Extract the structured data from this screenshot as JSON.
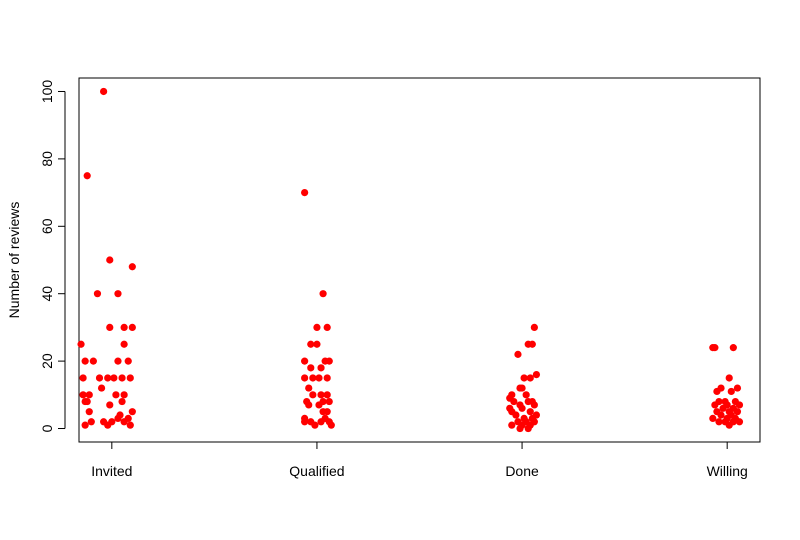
{
  "chart_data": {
    "type": "scatter",
    "title": "",
    "xlabel": "",
    "ylabel": "Number of reviews",
    "categories": [
      "Invited",
      "Qualified",
      "Done",
      "Willing"
    ],
    "ylim": [
      -4,
      104
    ],
    "yticks": [
      0,
      20,
      40,
      60,
      80,
      100
    ],
    "point_color": "#ff0000",
    "grid": false,
    "legend": "none",
    "series": [
      {
        "values": [
          [
            -0.04,
            100
          ],
          [
            -0.12,
            75
          ],
          [
            -0.01,
            50
          ],
          [
            0.1,
            48
          ],
          [
            -0.07,
            40
          ],
          [
            0.03,
            40
          ],
          [
            -0.01,
            30
          ],
          [
            0.06,
            30
          ],
          [
            0.1,
            30
          ],
          [
            -0.15,
            25
          ],
          [
            0.06,
            25
          ],
          [
            -0.13,
            20
          ],
          [
            -0.09,
            20
          ],
          [
            0.03,
            20
          ],
          [
            0.08,
            20
          ],
          [
            -0.06,
            15
          ],
          [
            -0.02,
            15
          ],
          [
            0.01,
            15
          ],
          [
            0.05,
            15
          ],
          [
            0.09,
            15
          ],
          [
            -0.14,
            15
          ],
          [
            -0.05,
            12
          ],
          [
            -0.14,
            10
          ],
          [
            -0.11,
            10
          ],
          [
            0.02,
            10
          ],
          [
            0.06,
            10
          ],
          [
            -0.13,
            8
          ],
          [
            -0.12,
            8
          ],
          [
            0.05,
            8
          ],
          [
            -0.01,
            7
          ],
          [
            -0.11,
            5
          ],
          [
            0.1,
            5
          ],
          [
            0.04,
            4
          ],
          [
            0.03,
            3
          ],
          [
            -0.1,
            2
          ],
          [
            -0.04,
            2
          ],
          [
            0.08,
            3
          ],
          [
            -0.13,
            1
          ],
          [
            -0.02,
            1
          ],
          [
            0.09,
            1
          ],
          [
            0.0,
            2
          ],
          [
            0.06,
            2
          ]
        ]
      },
      {
        "values": [
          [
            -0.06,
            70
          ],
          [
            0.03,
            40
          ],
          [
            0.0,
            30
          ],
          [
            0.05,
            30
          ],
          [
            -0.03,
            25
          ],
          [
            0.0,
            25
          ],
          [
            -0.06,
            20
          ],
          [
            0.04,
            20
          ],
          [
            -0.03,
            18
          ],
          [
            0.02,
            18
          ],
          [
            0.06,
            20
          ],
          [
            0.05,
            15
          ],
          [
            -0.02,
            15
          ],
          [
            -0.06,
            15
          ],
          [
            0.01,
            15
          ],
          [
            -0.04,
            12
          ],
          [
            0.02,
            10
          ],
          [
            0.05,
            10
          ],
          [
            -0.02,
            10
          ],
          [
            -0.05,
            8
          ],
          [
            0.03,
            8
          ],
          [
            0.06,
            8
          ],
          [
            -0.04,
            7
          ],
          [
            0.01,
            7
          ],
          [
            0.05,
            5
          ],
          [
            0.03,
            5
          ],
          [
            -0.06,
            3
          ],
          [
            0.04,
            3
          ],
          [
            -0.03,
            2
          ],
          [
            0.02,
            2
          ],
          [
            0.06,
            2
          ],
          [
            -0.01,
            1
          ],
          [
            -0.06,
            2
          ],
          [
            0.07,
            1
          ]
        ]
      },
      {
        "values": [
          [
            -0.02,
            22
          ],
          [
            0.06,
            30
          ],
          [
            0.03,
            25
          ],
          [
            0.05,
            25
          ],
          [
            0.01,
            15
          ],
          [
            0.04,
            15
          ],
          [
            0.07,
            16
          ],
          [
            -0.01,
            12
          ],
          [
            0.0,
            12
          ],
          [
            -0.05,
            10
          ],
          [
            0.02,
            10
          ],
          [
            -0.06,
            9
          ],
          [
            -0.04,
            8
          ],
          [
            0.03,
            8
          ],
          [
            0.05,
            8
          ],
          [
            -0.01,
            7
          ],
          [
            0.06,
            7
          ],
          [
            -0.06,
            6
          ],
          [
            0.0,
            6
          ],
          [
            0.04,
            5
          ],
          [
            -0.05,
            5
          ],
          [
            0.07,
            4
          ],
          [
            -0.03,
            4
          ],
          [
            0.01,
            3
          ],
          [
            0.05,
            3
          ],
          [
            -0.02,
            2
          ],
          [
            0.02,
            2
          ],
          [
            0.06,
            2
          ],
          [
            -0.05,
            1
          ],
          [
            0.0,
            1
          ],
          [
            0.04,
            1
          ],
          [
            -0.01,
            0
          ],
          [
            0.03,
            0
          ]
        ]
      },
      {
        "values": [
          [
            -0.07,
            24
          ],
          [
            -0.06,
            24
          ],
          [
            0.03,
            24
          ],
          [
            0.01,
            15
          ],
          [
            -0.03,
            12
          ],
          [
            0.05,
            12
          ],
          [
            -0.05,
            11
          ],
          [
            0.02,
            11
          ],
          [
            -0.04,
            8
          ],
          [
            -0.01,
            8
          ],
          [
            0.04,
            8
          ],
          [
            -0.06,
            7
          ],
          [
            0.0,
            7
          ],
          [
            0.06,
            7
          ],
          [
            -0.02,
            6
          ],
          [
            0.03,
            6
          ],
          [
            -0.05,
            5
          ],
          [
            0.01,
            5
          ],
          [
            0.05,
            5
          ],
          [
            -0.03,
            4
          ],
          [
            0.02,
            4
          ],
          [
            -0.07,
            3
          ],
          [
            0.0,
            3
          ],
          [
            0.04,
            3
          ],
          [
            -0.04,
            2
          ],
          [
            0.03,
            2
          ],
          [
            -0.01,
            2
          ],
          [
            0.06,
            2
          ],
          [
            0.01,
            1
          ]
        ]
      }
    ]
  }
}
